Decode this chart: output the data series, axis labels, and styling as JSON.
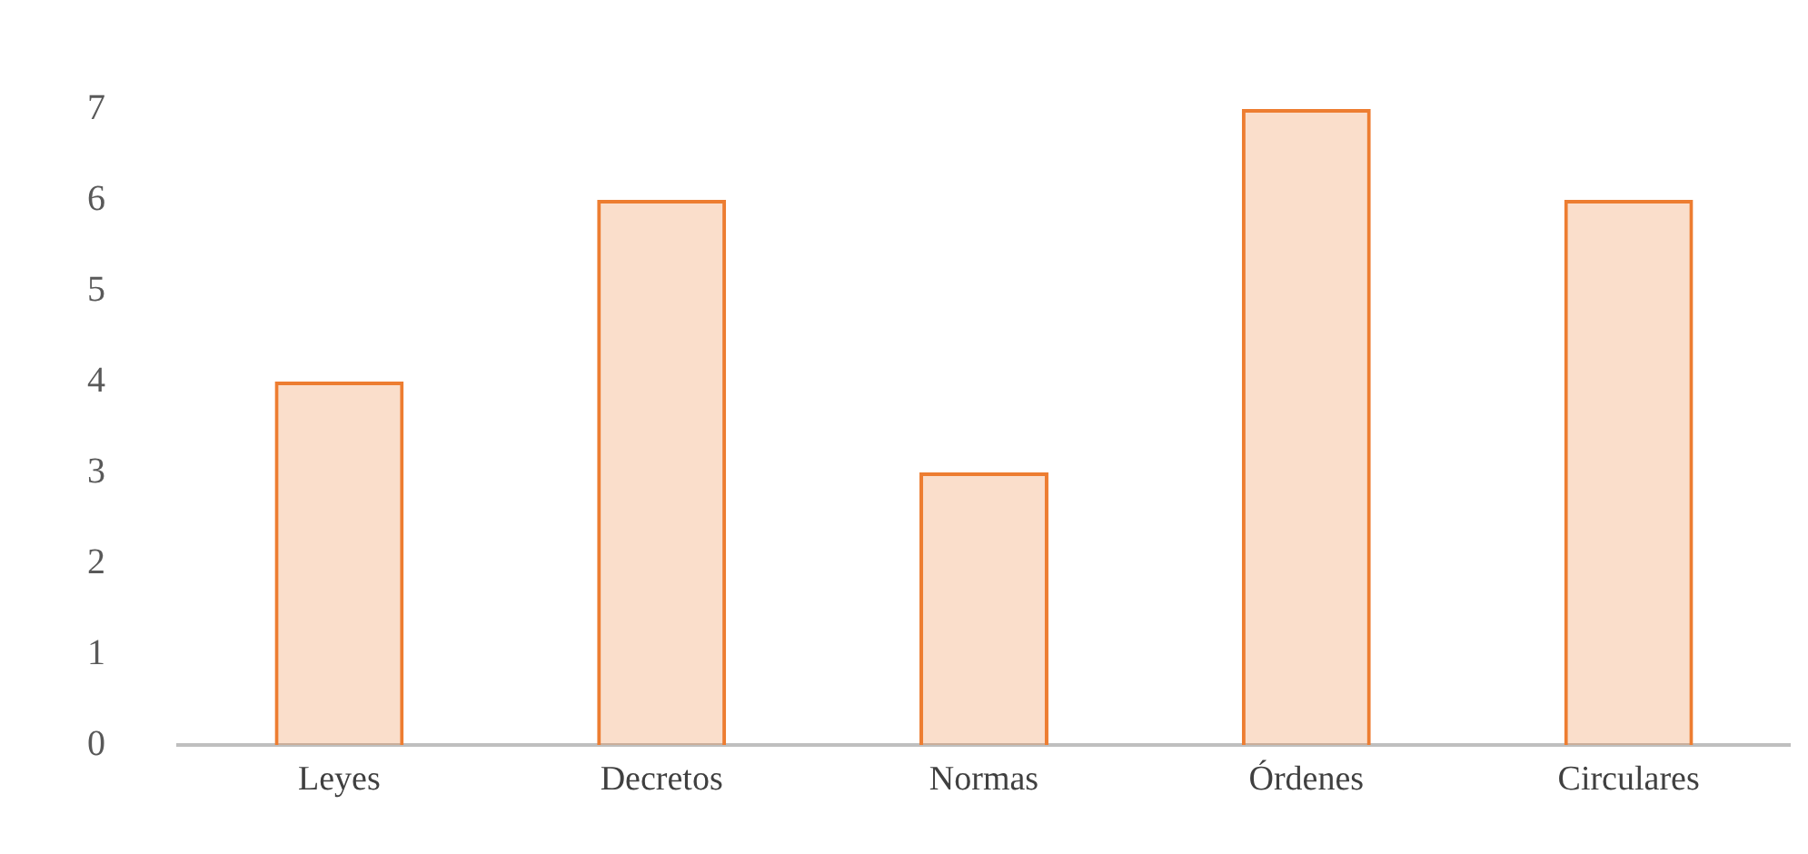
{
  "chart_data": {
    "type": "bar",
    "categories": [
      "Leyes",
      "Decretos",
      "Normas",
      "Órdenes",
      "Circulares"
    ],
    "values": [
      4,
      6,
      3,
      7,
      6
    ],
    "color": "#ed7d31",
    "ylim": [
      0,
      7
    ],
    "yticks": [
      0,
      1,
      2,
      3,
      4,
      5,
      6,
      7
    ],
    "grid": false,
    "legend": false
  }
}
